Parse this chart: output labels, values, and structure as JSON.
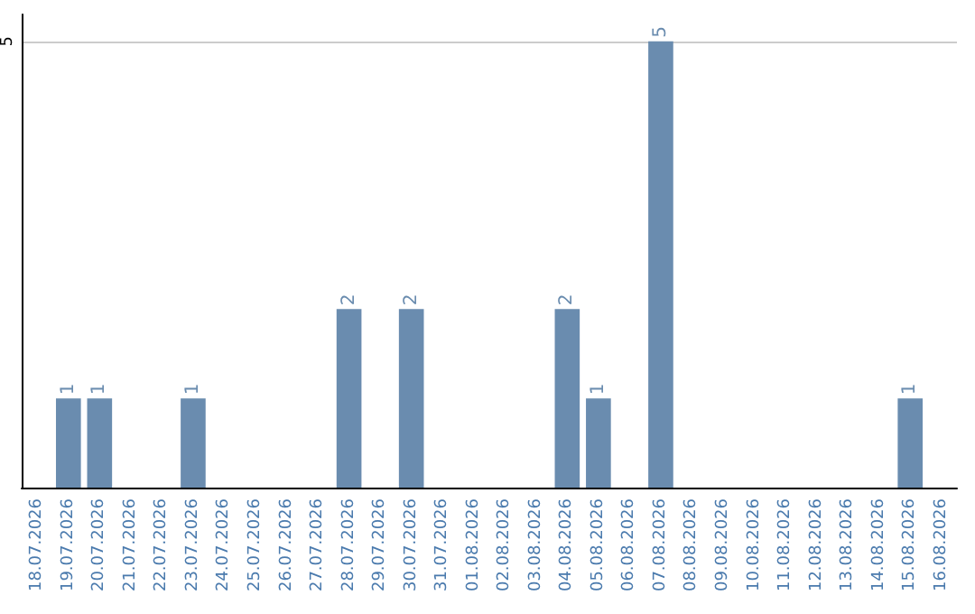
{
  "chart_data": {
    "type": "bar",
    "categories": [
      "18.07.2026",
      "19.07.2026",
      "20.07.2026",
      "21.07.2026",
      "22.07.2026",
      "23.07.2026",
      "24.07.2026",
      "25.07.2026",
      "26.07.2026",
      "27.07.2026",
      "28.07.2026",
      "29.07.2026",
      "30.07.2026",
      "31.07.2026",
      "01.08.2026",
      "02.08.2026",
      "03.08.2026",
      "04.08.2026",
      "05.08.2026",
      "06.08.2026",
      "07.08.2026",
      "08.08.2026",
      "09.08.2026",
      "10.08.2026",
      "11.08.2026",
      "12.08.2026",
      "13.08.2026",
      "14.08.2026",
      "15.08.2026",
      "16.08.2026"
    ],
    "values": [
      0,
      1,
      1,
      0,
      0,
      1,
      0,
      0,
      0,
      0,
      2,
      0,
      2,
      0,
      0,
      0,
      0,
      2,
      1,
      0,
      5,
      0,
      0,
      0,
      0,
      0,
      0,
      0,
      1,
      0
    ],
    "value_labels": [
      null,
      "1",
      "1",
      null,
      null,
      "1",
      null,
      null,
      null,
      null,
      "2",
      null,
      "2",
      null,
      null,
      null,
      null,
      "2",
      "1",
      null,
      "5",
      null,
      null,
      null,
      null,
      null,
      null,
      null,
      "1",
      null
    ],
    "color": "#6a8caf",
    "ylim": [
      0,
      5.3
    ],
    "yticks": [
      5
    ],
    "grid": "y"
  }
}
